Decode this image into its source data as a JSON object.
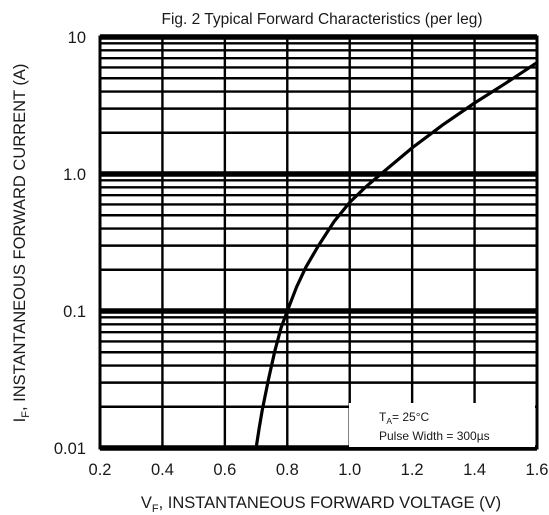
{
  "chart_data": {
    "type": "line",
    "title": "Fig. 2 Typical Forward Characteristics (per leg)",
    "xlabel": {
      "main": "V",
      "sub": "F",
      "rest": ", INSTANTANEOUS FORWARD VOLTAGE (V)"
    },
    "ylabel": {
      "main": "I",
      "sub": "F",
      "rest": ", INSTANTANEOUS FORWARD CURRENT (A)"
    },
    "xlim": [
      0.2,
      1.6
    ],
    "ylim": [
      0.01,
      10
    ],
    "y_scale": "log",
    "grid": true,
    "x_ticks": [
      "0.2",
      "0.4",
      "0.6",
      "0.8",
      "1.0",
      "1.2",
      "1.4",
      "1.6"
    ],
    "y_ticks": [
      "0.01",
      "0.1",
      "1.0",
      "10"
    ],
    "annotation": {
      "line1_main": "T",
      "line1_sub": "A",
      "line1_rest": "= 25°C",
      "line2": "Pulse Width = 300µs"
    },
    "series": [
      {
        "x": [
          0.7,
          0.71,
          0.72,
          0.74,
          0.76,
          0.78,
          0.8,
          0.83,
          0.86,
          0.9,
          0.95,
          1.0,
          1.05,
          1.1,
          1.2,
          1.3,
          1.4,
          1.5,
          1.6
        ],
        "y": [
          0.01,
          0.014,
          0.019,
          0.032,
          0.051,
          0.075,
          0.1,
          0.15,
          0.21,
          0.3,
          0.45,
          0.62,
          0.8,
          1.0,
          1.55,
          2.3,
          3.3,
          4.6,
          6.5
        ]
      }
    ]
  }
}
